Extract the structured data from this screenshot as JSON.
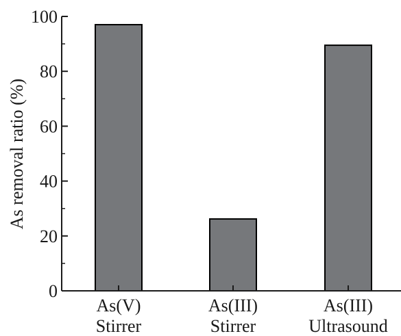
{
  "chart_data": {
    "type": "bar",
    "title": "",
    "xlabel": "",
    "ylabel": "As removal ratio (%)",
    "ylim": [
      0,
      100
    ],
    "yticks": [
      0,
      20,
      40,
      60,
      80,
      100
    ],
    "categories": [
      {
        "line1": "As(V)",
        "line2": "Stirrer"
      },
      {
        "line1": "As(III)",
        "line2": "Stirrer"
      },
      {
        "line1": "As(III)",
        "line2": "Ultrasound"
      }
    ],
    "values": [
      97,
      26.2,
      89.5
    ],
    "grid": false,
    "legend": "none",
    "colors": {
      "bar_fill": "#76787b",
      "bar_stroke": "#000000",
      "axis": "#1a1a1a",
      "text": "#1a1a1a"
    }
  }
}
